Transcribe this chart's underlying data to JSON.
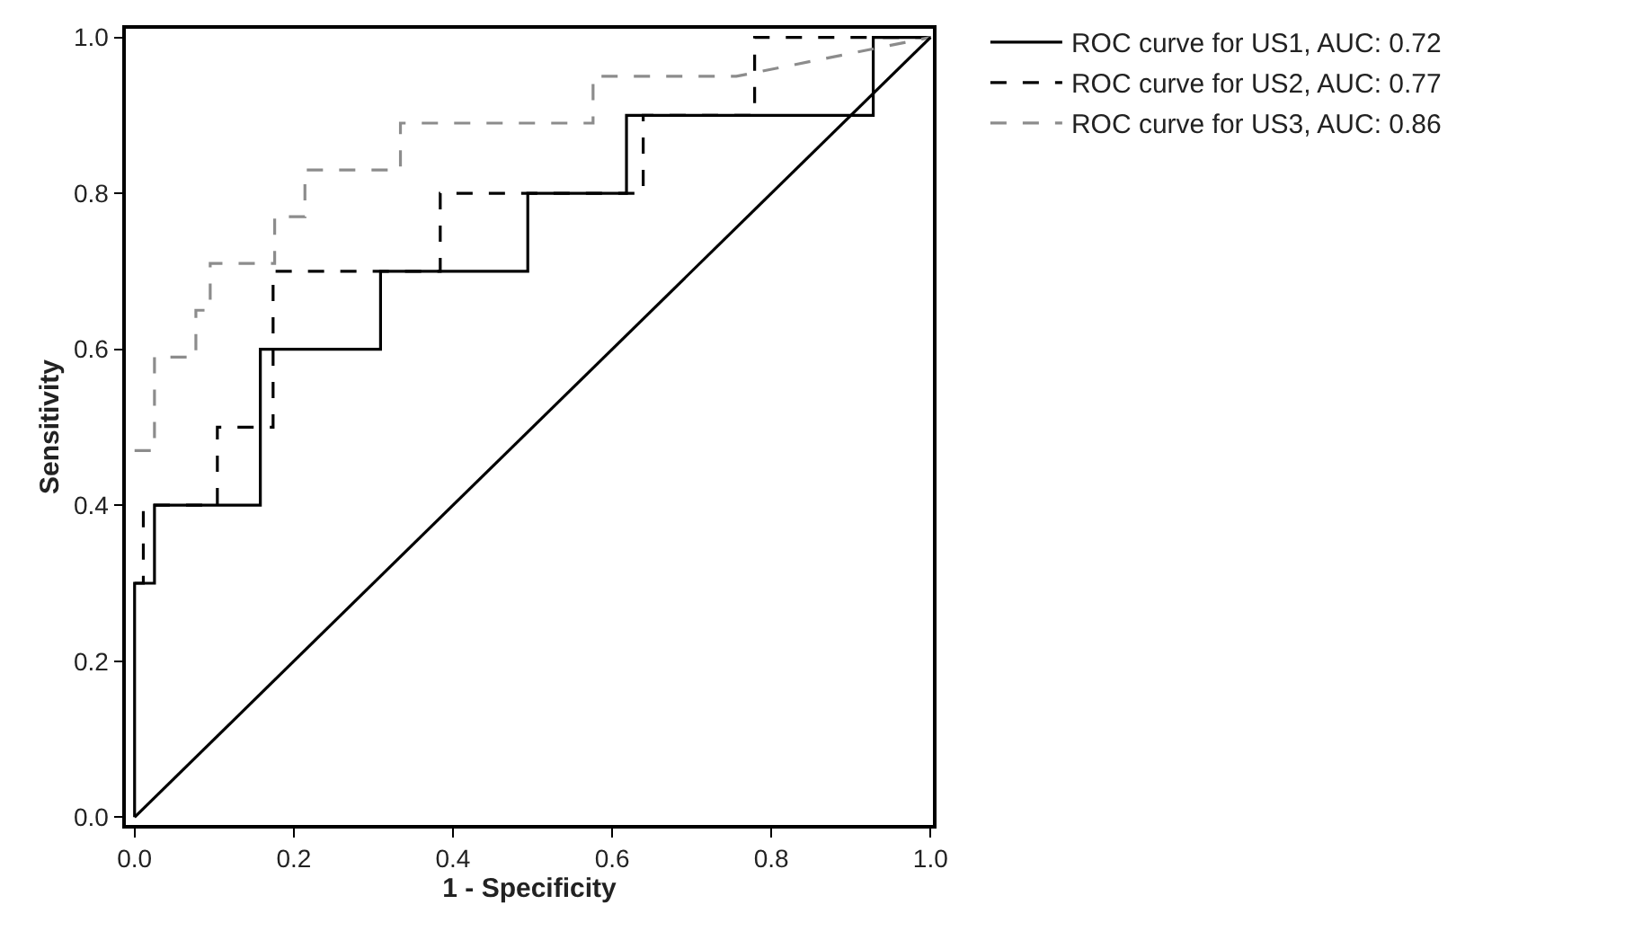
{
  "chart_data": {
    "type": "line",
    "xlabel": "1 - Specificity",
    "ylabel": "Sensitivity",
    "xlim": [
      -0.011,
      1.003
    ],
    "ylim": [
      -0.01,
      1.011
    ],
    "xticks": [
      {
        "value": 0,
        "label": "0.0"
      },
      {
        "value": 0.2,
        "label": "0.2"
      },
      {
        "value": 0.4,
        "label": "0.4"
      },
      {
        "value": 0.6,
        "label": "0.6"
      },
      {
        "value": 0.8,
        "label": "0.8"
      },
      {
        "value": 1,
        "label": "1.0"
      }
    ],
    "yticks": [
      {
        "value": 0,
        "label": "0.0"
      },
      {
        "value": 0.2,
        "label": "0.2"
      },
      {
        "value": 0.4,
        "label": "0.4"
      },
      {
        "value": 0.6,
        "label": "0.6"
      },
      {
        "value": 0.8,
        "label": "0.8"
      },
      {
        "value": 1,
        "label": "1.0"
      }
    ],
    "legend": "top right",
    "marker": "none",
    "series": [
      {
        "name": "ROC curve for US1, AUC: 0.72",
        "color": "#000000",
        "line_style": "solid",
        "x": [
          0,
          0,
          0.025,
          0.025,
          0.158,
          0.158,
          0.309,
          0.309,
          0.494,
          0.494,
          0.618,
          0.618,
          0.928,
          0.928,
          1
        ],
        "values": [
          0,
          0.3,
          0.3,
          0.4,
          0.4,
          0.6,
          0.6,
          0.7,
          0.7,
          0.8,
          0.8,
          0.9,
          0.9,
          1,
          1
        ]
      },
      {
        "name": "ROC curve for US2, AUC: 0.77",
        "color": "#000000",
        "line_style": "dashed",
        "x": [
          0,
          0.011,
          0.011,
          0.104,
          0.104,
          0.174,
          0.174,
          0.384,
          0.384,
          0.639,
          0.639,
          0.779,
          0.779,
          1
        ],
        "values": [
          0.3,
          0.3,
          0.4,
          0.4,
          0.5,
          0.5,
          0.7,
          0.7,
          0.8,
          0.8,
          0.9,
          0.9,
          1,
          1
        ]
      },
      {
        "name": "ROC curve for US3, AUC: 0.86",
        "color": "#8c8c8c",
        "line_style": "dashed",
        "x": [
          0,
          0.025,
          0.025,
          0.077,
          0.077,
          0.095,
          0.095,
          0.176,
          0.176,
          0.214,
          0.214,
          0.334,
          0.334,
          0.576,
          0.576,
          0.756,
          1
        ],
        "values": [
          0.47,
          0.47,
          0.59,
          0.59,
          0.65,
          0.65,
          0.71,
          0.71,
          0.77,
          0.77,
          0.83,
          0.83,
          0.89,
          0.89,
          0.95,
          0.95,
          1
        ]
      },
      {
        "color": "#000000",
        "line_style": "solid",
        "x": [
          0,
          1
        ],
        "values": [
          0,
          1
        ]
      }
    ]
  }
}
